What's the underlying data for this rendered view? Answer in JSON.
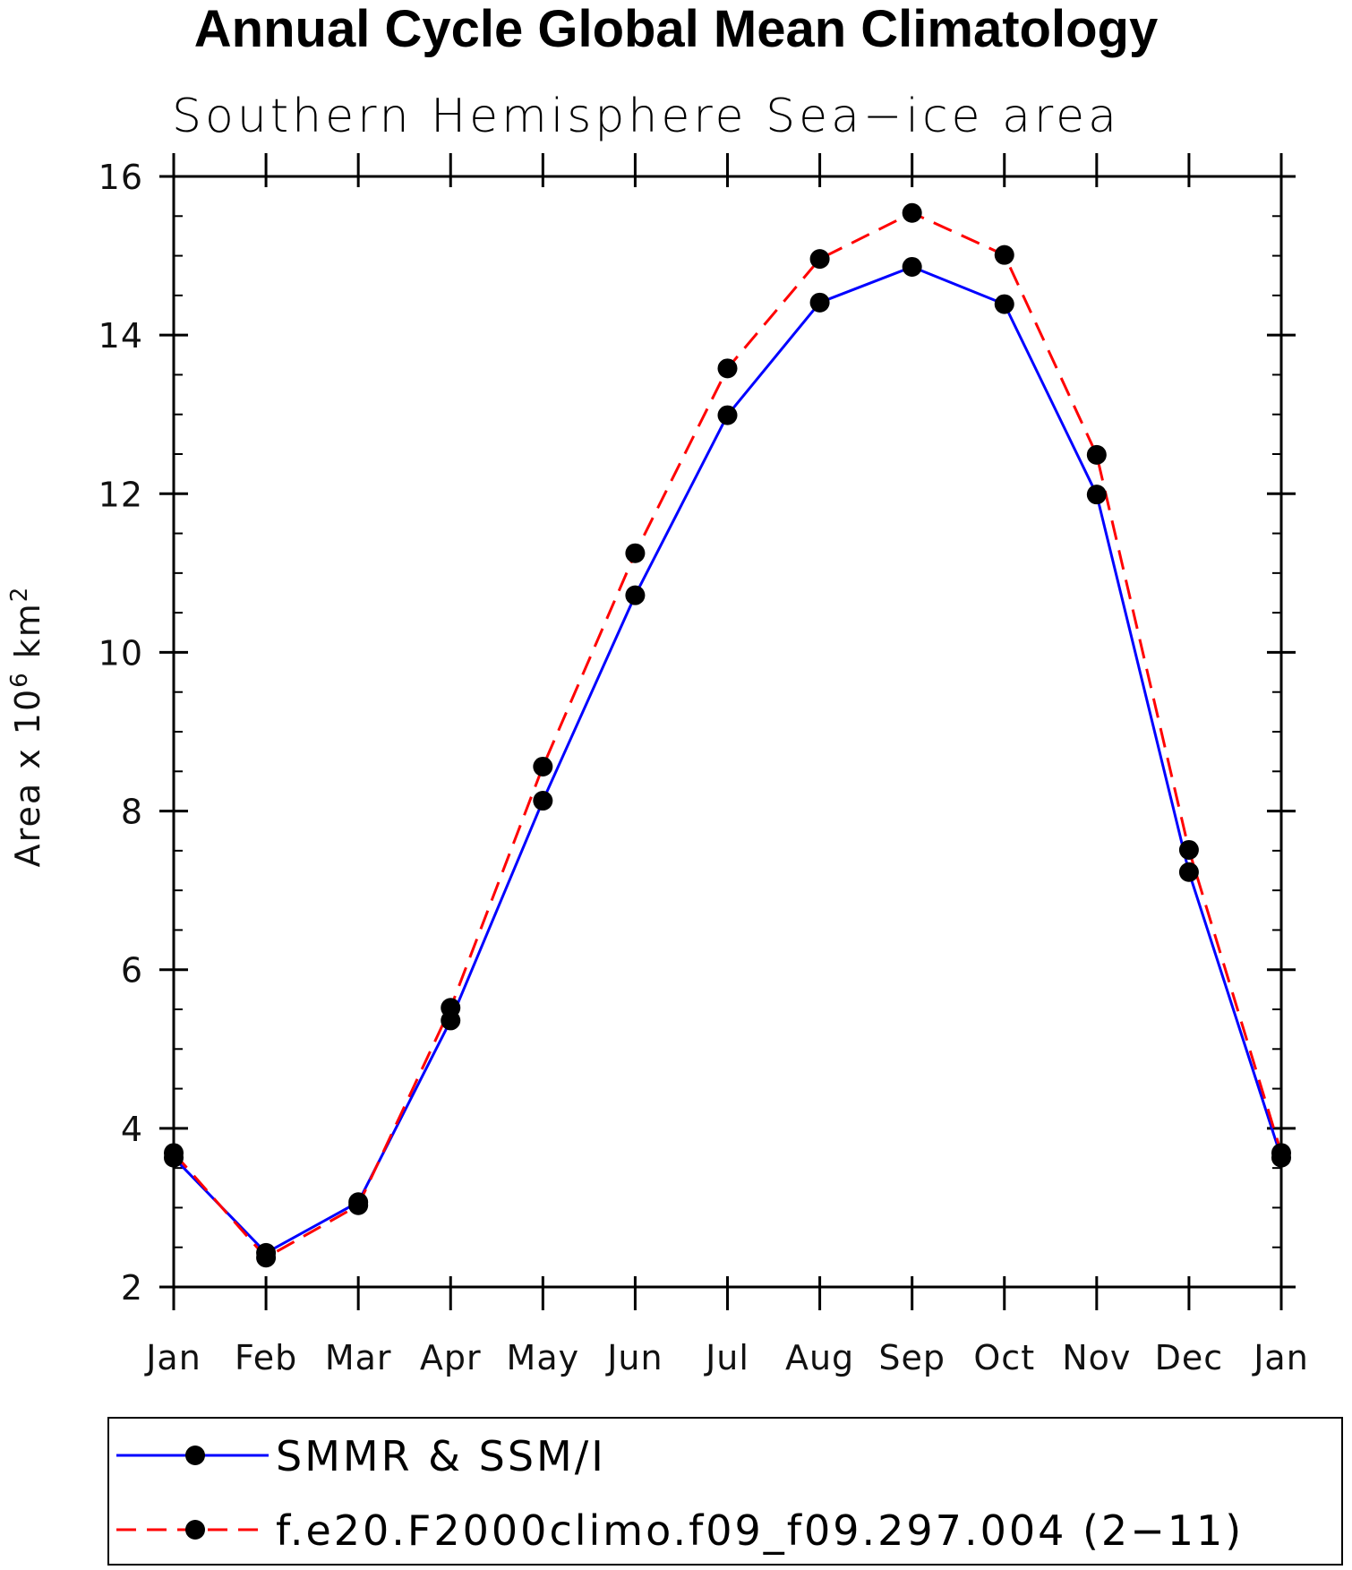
{
  "chart_data": {
    "type": "line",
    "title": "Annual Cycle Global Mean Climatology",
    "subtitle": "Southern Hemisphere Sea−ice area",
    "ylabel_prefix": "Area x 10",
    "ylabel_exp": "6",
    "ylabel_unit": " km",
    "ylabel_unit_exp": "2",
    "xlabel": "",
    "categories": [
      "Jan",
      "Feb",
      "Mar",
      "Apr",
      "May",
      "Jun",
      "Jul",
      "Aug",
      "Sep",
      "Oct",
      "Nov",
      "Dec",
      "Jan"
    ],
    "ylim": [
      2,
      16
    ],
    "yticks": [
      2,
      4,
      6,
      8,
      10,
      12,
      14,
      16
    ],
    "yminor_step": 0.5,
    "series": [
      {
        "name": "SMMR & SSM/I",
        "color": "#0000ff",
        "dash": "solid",
        "marker": "filled-circle",
        "values": [
          3.63,
          2.43,
          3.07,
          5.36,
          8.13,
          10.72,
          12.99,
          14.41,
          14.86,
          14.39,
          11.99,
          7.23,
          3.63
        ]
      },
      {
        "name": "f.e20.F2000climo.f09_f09.297.004 (2−11)",
        "color": "#ff0000",
        "dash": "dashed",
        "marker": "filled-circle",
        "values": [
          3.69,
          2.37,
          3.03,
          5.52,
          8.56,
          11.25,
          13.58,
          14.96,
          15.54,
          15.01,
          12.49,
          7.51,
          3.69
        ]
      }
    ],
    "legend_position": "bottom"
  }
}
